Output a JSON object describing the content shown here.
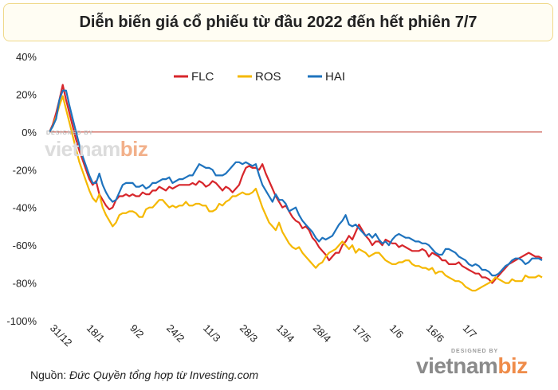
{
  "title": "Diễn biến giá cổ phiếu từ đầu 2022 đến hết phiên 7/7",
  "source": {
    "prefix": "Nguồn: ",
    "text": "Đức Quyền tổng hợp từ Investing.com"
  },
  "watermark": {
    "small": "DESIGNED BY",
    "brand_a": "vietnam",
    "brand_b": "biz"
  },
  "colors": {
    "FLC": "#d7262b",
    "ROS": "#f5b800",
    "HAI": "#1e73be",
    "zero_line": "#c0392b"
  },
  "chart_data": {
    "type": "line",
    "title": "Diễn biến giá cổ phiếu từ đầu 2022 đến hết phiên 7/7",
    "xlabel": "",
    "ylabel": "",
    "ylim": [
      -100,
      40
    ],
    "yticks": [
      -100,
      -80,
      -60,
      -40,
      -20,
      0,
      20,
      40
    ],
    "ytick_labels": [
      "-100%",
      "-80%",
      "-60%",
      "-40%",
      "-20%",
      "0%",
      "20%",
      "40%"
    ],
    "xtick_labels": [
      "31/12",
      "18/1",
      "9/2",
      "24/2",
      "11/3",
      "28/3",
      "13/4",
      "28/4",
      "17/5",
      "1/6",
      "16/6",
      "1/7"
    ],
    "xtick_index": [
      0,
      11,
      24,
      35,
      46,
      57,
      68,
      79,
      91,
      102,
      113,
      124
    ],
    "legend_position": "top-center",
    "grid": false,
    "series": [
      {
        "name": "FLC",
        "values": [
          0,
          4,
          10,
          17,
          25,
          17,
          10,
          3,
          -4,
          -10,
          -15,
          -20,
          -25,
          -28,
          -26,
          -33,
          -36,
          -39,
          -41,
          -40,
          -36,
          -34,
          -34,
          -33,
          -34,
          -33,
          -34,
          -34,
          -32,
          -33,
          -33,
          -31,
          -31,
          -29,
          -30,
          -31,
          -29,
          -30,
          -29,
          -28,
          -28,
          -28,
          -28,
          -27,
          -28,
          -26,
          -27,
          -29,
          -28,
          -26,
          -27,
          -29,
          -31,
          -29,
          -30,
          -32,
          -30,
          -28,
          -23,
          -19,
          -18,
          -19,
          -19,
          -20,
          -17,
          -22,
          -26,
          -30,
          -34,
          -37,
          -40,
          -39,
          -42,
          -45,
          -47,
          -48,
          -51,
          -50,
          -52,
          -56,
          -58,
          -61,
          -63,
          -65,
          -68,
          -66,
          -64,
          -64,
          -60,
          -58,
          -55,
          -57,
          -53,
          -49,
          -52,
          -55,
          -57,
          -60,
          -58,
          -58,
          -60,
          -57,
          -58,
          -59,
          -59,
          -61,
          -60,
          -61,
          -62,
          -63,
          -63,
          -63,
          -62,
          -63,
          -66,
          -64,
          -65,
          -66,
          -68,
          -68,
          -70,
          -70,
          -70,
          -69,
          -71,
          -72,
          -73,
          -74,
          -75,
          -75,
          -77,
          -77,
          -78,
          -80,
          -78,
          -76,
          -74,
          -72,
          -70,
          -69,
          -68,
          -67,
          -66,
          -65,
          -64,
          -65,
          -66,
          -66,
          -67
        ]
      },
      {
        "name": "ROS",
        "values": [
          0,
          3,
          8,
          14,
          19,
          12,
          5,
          -2,
          -9,
          -16,
          -21,
          -26,
          -31,
          -35,
          -37,
          -33,
          -40,
          -44,
          -47,
          -50,
          -48,
          -44,
          -43,
          -43,
          -42,
          -42,
          -43,
          -45,
          -45,
          -41,
          -40,
          -40,
          -38,
          -36,
          -36,
          -38,
          -40,
          -39,
          -40,
          -39,
          -39,
          -37,
          -39,
          -39,
          -38,
          -38,
          -39,
          -39,
          -42,
          -42,
          -41,
          -38,
          -39,
          -37,
          -36,
          -34,
          -34,
          -33,
          -32,
          -33,
          -33,
          -32,
          -30,
          -35,
          -40,
          -44,
          -48,
          -50,
          -52,
          -48,
          -53,
          -56,
          -59,
          -61,
          -62,
          -61,
          -64,
          -66,
          -68,
          -70,
          -72,
          -70,
          -69,
          -66,
          -64,
          -63,
          -62,
          -60,
          -58,
          -60,
          -62,
          -60,
          -64,
          -62,
          -63,
          -64,
          -66,
          -65,
          -64,
          -64,
          -66,
          -68,
          -69,
          -70,
          -70,
          -69,
          -69,
          -68,
          -68,
          -70,
          -71,
          -71,
          -72,
          -72,
          -73,
          -72,
          -75,
          -74,
          -74,
          -76,
          -77,
          -78,
          -79,
          -79,
          -80,
          -82,
          -83,
          -84,
          -84,
          -83,
          -82,
          -81,
          -80,
          -79,
          -77,
          -78,
          -79,
          -80,
          -80,
          -78,
          -79,
          -79,
          -79,
          -76,
          -77,
          -77,
          -77,
          -76,
          -77
        ]
      },
      {
        "name": "HAI",
        "values": [
          0,
          3,
          7,
          17,
          22,
          22,
          14,
          7,
          0,
          -7,
          -13,
          -18,
          -23,
          -27,
          -27,
          -22,
          -28,
          -32,
          -35,
          -37,
          -36,
          -32,
          -28,
          -27,
          -27,
          -27,
          -29,
          -29,
          -28,
          -30,
          -29,
          -27,
          -27,
          -26,
          -25,
          -25,
          -24,
          -27,
          -26,
          -25,
          -25,
          -24,
          -23,
          -23,
          -20,
          -17,
          -18,
          -19,
          -19,
          -20,
          -23,
          -23,
          -23,
          -22,
          -20,
          -18,
          -16,
          -16,
          -17,
          -16,
          -17,
          -18,
          -17,
          -23,
          -28,
          -31,
          -34,
          -37,
          -33,
          -36,
          -36,
          -38,
          -42,
          -41,
          -40,
          -44,
          -47,
          -49,
          -51,
          -53,
          -56,
          -58,
          -56,
          -57,
          -56,
          -55,
          -52,
          -49,
          -47,
          -44,
          -49,
          -50,
          -49,
          -51,
          -53,
          -55,
          -54,
          -56,
          -54,
          -57,
          -59,
          -58,
          -60,
          -57,
          -55,
          -54,
          -55,
          -56,
          -56,
          -57,
          -58,
          -58,
          -59,
          -59,
          -60,
          -62,
          -64,
          -65,
          -65,
          -62,
          -62,
          -63,
          -64,
          -66,
          -67,
          -68,
          -70,
          -71,
          -70,
          -71,
          -73,
          -73,
          -74,
          -76,
          -76,
          -75,
          -73,
          -71,
          -70,
          -68,
          -67,
          -67,
          -68,
          -70,
          -69,
          -67,
          -67,
          -67,
          -68
        ]
      }
    ]
  }
}
